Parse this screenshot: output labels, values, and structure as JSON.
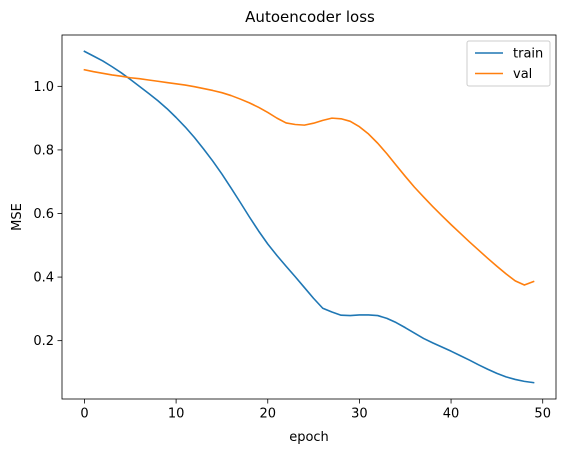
{
  "chart_data": {
    "type": "line",
    "title": "Autoencoder loss",
    "xlabel": "epoch",
    "ylabel": "MSE",
    "xlim": [
      -2.45,
      51.45
    ],
    "ylim": [
      0.0165,
      1.1615
    ],
    "xticks": [
      0,
      10,
      20,
      30,
      40,
      50
    ],
    "yticks": [
      0.2,
      0.4,
      0.6,
      0.8,
      1.0
    ],
    "xtick_labels": [
      "0",
      "10",
      "20",
      "30",
      "40",
      "50"
    ],
    "ytick_labels": [
      "0.2",
      "0.4",
      "0.6",
      "0.8",
      "1.0"
    ],
    "grid": false,
    "legend_position": "top-right",
    "series": [
      {
        "name": "train",
        "color": "#1f77b4",
        "x": [
          0,
          1,
          2,
          3,
          4,
          5,
          6,
          7,
          8,
          9,
          10,
          11,
          12,
          13,
          14,
          15,
          16,
          17,
          18,
          19,
          20,
          21,
          22,
          23,
          24,
          25,
          26,
          27,
          28,
          29,
          30,
          31,
          32,
          33,
          34,
          35,
          36,
          37,
          38,
          39,
          40,
          41,
          42,
          43,
          44,
          45,
          46,
          47,
          48,
          49
        ],
        "values": [
          1.11,
          1.095,
          1.08,
          1.062,
          1.043,
          1.022,
          1.0,
          0.978,
          0.955,
          0.93,
          0.902,
          0.872,
          0.839,
          0.803,
          0.765,
          0.724,
          0.68,
          0.635,
          0.589,
          0.545,
          0.504,
          0.468,
          0.434,
          0.401,
          0.367,
          0.333,
          0.302,
          0.29,
          0.28,
          0.279,
          0.281,
          0.281,
          0.279,
          0.27,
          0.257,
          0.241,
          0.224,
          0.207,
          0.193,
          0.18,
          0.167,
          0.153,
          0.139,
          0.124,
          0.11,
          0.097,
          0.086,
          0.078,
          0.072,
          0.068
        ]
      },
      {
        "name": "val",
        "color": "#ff7f0e",
        "x": [
          0,
          1,
          2,
          3,
          4,
          5,
          6,
          7,
          8,
          9,
          10,
          11,
          12,
          13,
          14,
          15,
          16,
          17,
          18,
          19,
          20,
          21,
          22,
          23,
          24,
          25,
          26,
          27,
          28,
          29,
          30,
          31,
          32,
          33,
          34,
          35,
          36,
          37,
          38,
          39,
          40,
          41,
          42,
          43,
          44,
          45,
          46,
          47,
          48,
          49
        ],
        "values": [
          1.052,
          1.046,
          1.041,
          1.036,
          1.032,
          1.027,
          1.024,
          1.02,
          1.016,
          1.012,
          1.008,
          1.004,
          0.999,
          0.993,
          0.987,
          0.98,
          0.971,
          0.96,
          0.948,
          0.934,
          0.918,
          0.9,
          0.885,
          0.88,
          0.878,
          0.884,
          0.893,
          0.9,
          0.898,
          0.89,
          0.873,
          0.85,
          0.821,
          0.788,
          0.752,
          0.717,
          0.683,
          0.652,
          0.622,
          0.593,
          0.565,
          0.538,
          0.511,
          0.485,
          0.459,
          0.434,
          0.41,
          0.388,
          0.375,
          0.386
        ]
      }
    ]
  }
}
